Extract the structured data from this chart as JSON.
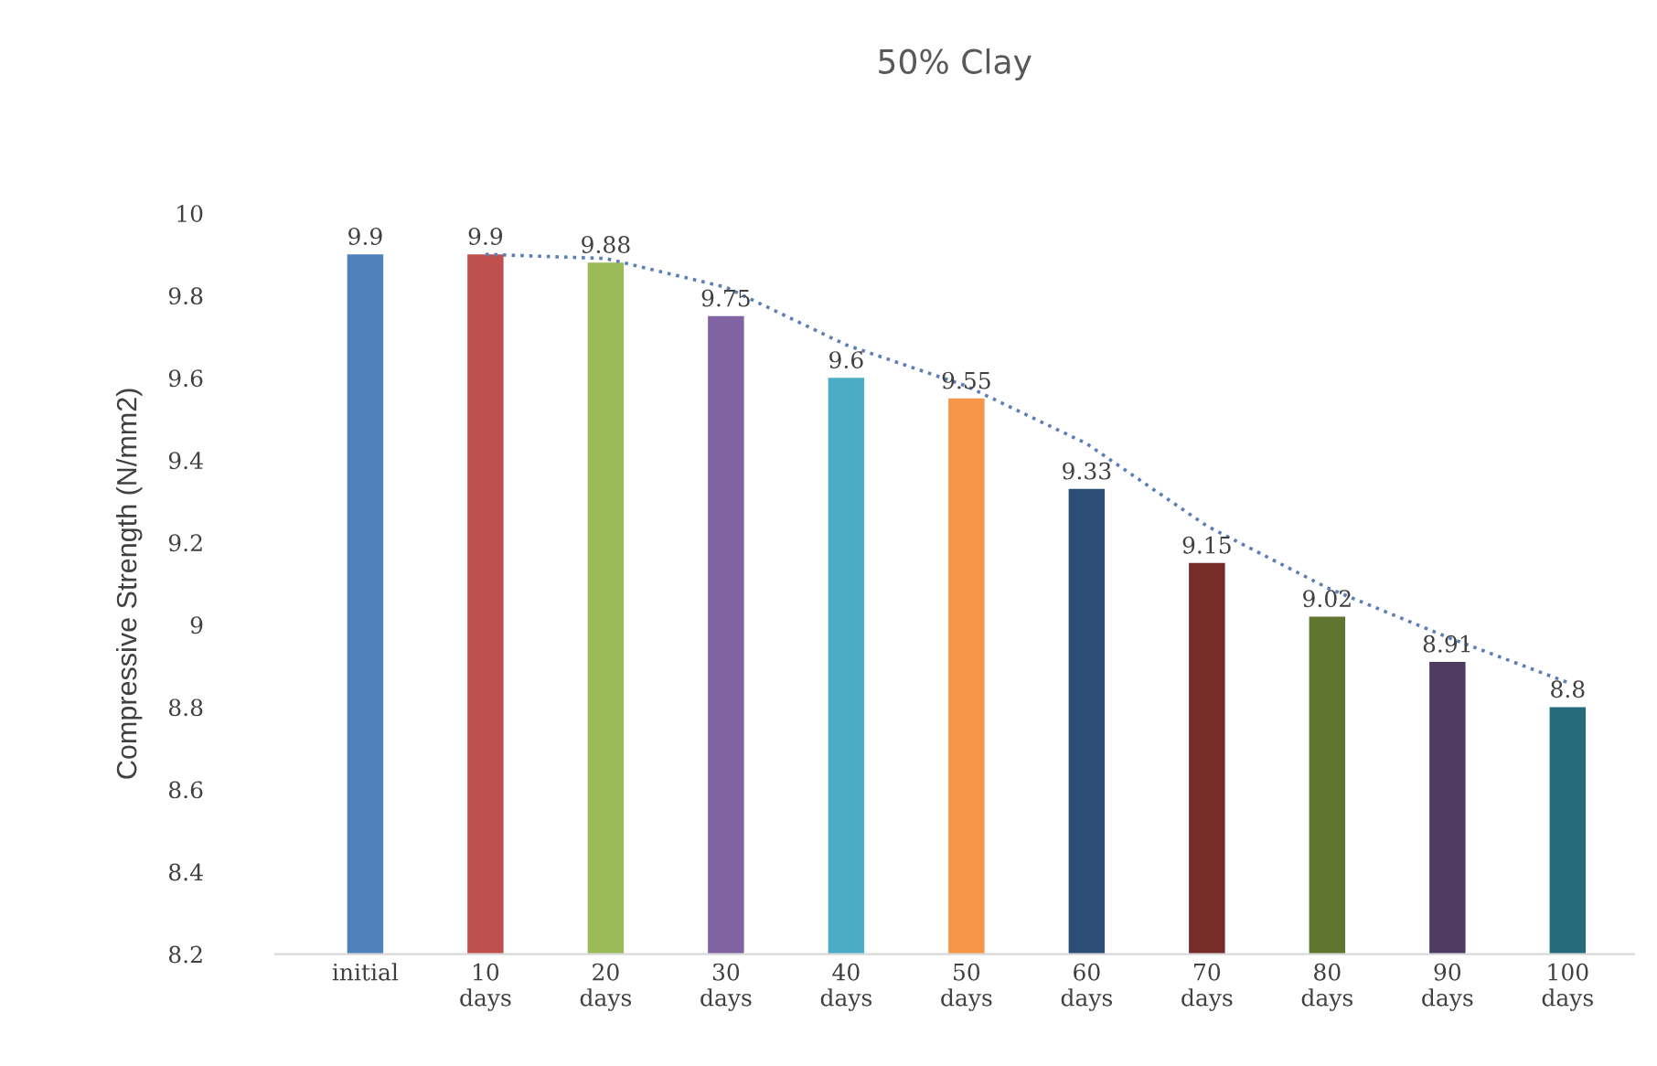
{
  "chart_data": {
    "type": "bar",
    "title": "50% Clay",
    "ylabel": "Compressive Strength (N/mm2)",
    "categories": [
      "initial",
      "10 days",
      "20 days",
      "30 days",
      "40 days",
      "50 days",
      "60 days",
      "70 days",
      "80 days",
      "90 days",
      "100 days"
    ],
    "series": [
      {
        "colors": [
          "#4f81bd",
          "#c0504d",
          "#9bbb59",
          "#8064a2",
          "#4bacc6",
          "#f79646",
          "#2c4d75",
          "#772c2a",
          "#5f7530",
          "#4d3b62",
          "#276a7c"
        ],
        "values": [
          9.9,
          9.9,
          9.88,
          9.75,
          9.6,
          9.55,
          9.33,
          9.15,
          9.02,
          8.91,
          8.8
        ],
        "value_labels": [
          "9.9",
          "9.9",
          "9.88",
          "9.75",
          "9.6",
          "9.55",
          "9.33",
          "9.15",
          "9.02",
          "8.91",
          "8.8"
        ]
      },
      {
        "type": "line",
        "color": "#5b7fb5",
        "line_style": "dotted",
        "values": [
          null,
          9.9,
          9.89,
          9.82,
          9.68,
          9.58,
          9.44,
          9.24,
          9.09,
          8.97,
          8.86
        ]
      }
    ],
    "ylim": [
      8.2,
      10
    ],
    "yticks": [
      8.2,
      8.4,
      8.6,
      8.8,
      9,
      9.2,
      9.4,
      9.6,
      9.8,
      10
    ]
  }
}
